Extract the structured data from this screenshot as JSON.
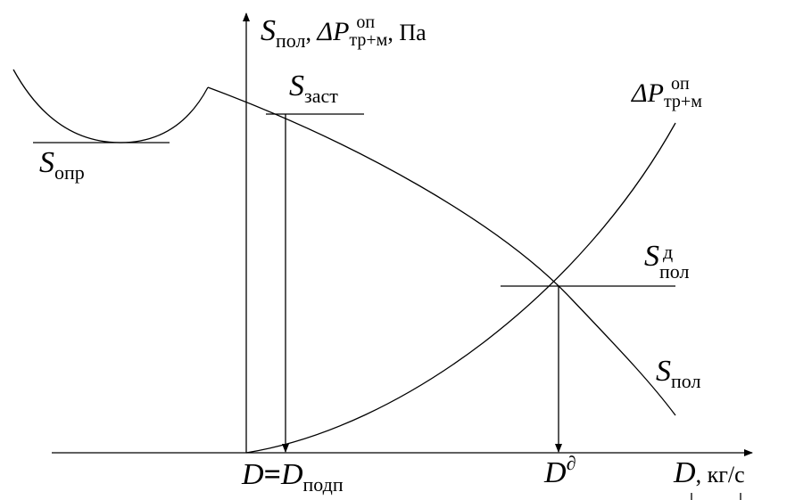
{
  "y_axis_label": {
    "s": "S",
    "s_sub": "пол",
    "sep": ",",
    "dp": "ΔP",
    "dp_sup": "оп",
    "dp_sub": "тр+м",
    "unit": ", Па"
  },
  "x_axis_label": {
    "d": "D",
    "unit": ", кг/с"
  },
  "curves": {
    "s_zast": {
      "main": "S",
      "sub": "заст"
    },
    "dp_trm": {
      "main": "ΔP",
      "sup": "оп",
      "sub": "тр+м"
    },
    "s_opr": {
      "main": "S",
      "sub": "опр"
    },
    "s_pol_d": {
      "main": "S",
      "sup": "д",
      "sub": "пол"
    },
    "s_pol": {
      "main": "S",
      "sub": "пол"
    }
  },
  "points": {
    "d_podp": {
      "d": "D",
      "eq": "=",
      "d2": "D",
      "sub": "подп"
    },
    "d_design": {
      "main": "D",
      "sup": "∂"
    }
  }
}
